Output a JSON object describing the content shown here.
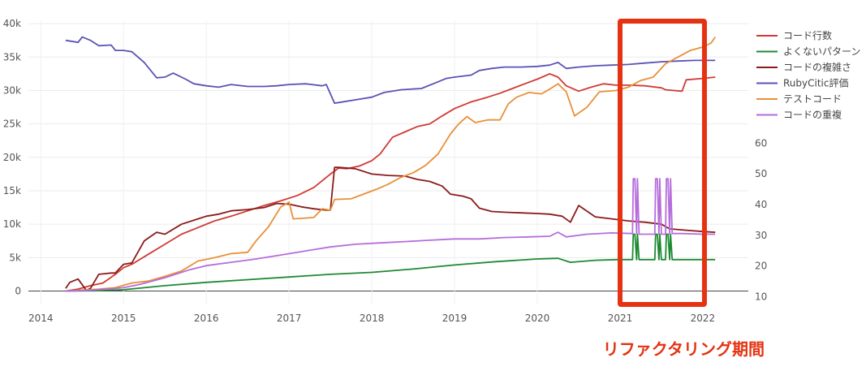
{
  "chart_data": {
    "type": "line",
    "title": "",
    "xlabel": "",
    "ylabel": "",
    "xlim": [
      2013.85,
      2022.55
    ],
    "ylim": [
      -2000,
      40500
    ],
    "y2lim": [
      7.5,
      100
    ],
    "x_ticks": [
      2014,
      2015,
      2016,
      2017,
      2018,
      2019,
      2020,
      2021,
      2022
    ],
    "y_ticks": [
      0,
      5000,
      10000,
      15000,
      20000,
      25000,
      30000,
      35000,
      40000
    ],
    "y_tick_labels": [
      "0",
      "5k",
      "10k",
      "15k",
      "20k",
      "25k",
      "30k",
      "35k",
      "40k"
    ],
    "y2_ticks": [
      10,
      20,
      30,
      40,
      50,
      60
    ],
    "grid": true,
    "legend_position": "right",
    "series": [
      {
        "name": "コード行数",
        "color": "#d03a35",
        "axis": "y",
        "x": [
          2014.3,
          2014.45,
          2014.6,
          2014.75,
          2014.9,
          2015.0,
          2015.1,
          2015.3,
          2015.5,
          2015.7,
          2015.9,
          2016.1,
          2016.3,
          2016.5,
          2016.7,
          2016.9,
          2017.1,
          2017.3,
          2017.5,
          2017.6,
          2017.7,
          2017.85,
          2018.0,
          2018.1,
          2018.25,
          2018.4,
          2018.55,
          2018.7,
          2018.85,
          2019.0,
          2019.2,
          2019.4,
          2019.55,
          2019.7,
          2019.85,
          2020.0,
          2020.15,
          2020.25,
          2020.35,
          2020.5,
          2020.65,
          2020.8,
          2020.95,
          2021.1,
          2021.3,
          2021.5,
          2021.55,
          2021.75,
          2021.8,
          2022.0,
          2022.15
        ],
        "values": [
          0,
          300,
          800,
          1200,
          2500,
          3500,
          4000,
          5500,
          7000,
          8500,
          9500,
          10500,
          11200,
          12000,
          12800,
          13500,
          14300,
          15500,
          17500,
          18400,
          18300,
          18700,
          19500,
          20500,
          23000,
          23800,
          24600,
          25000,
          26200,
          27300,
          28300,
          29000,
          29600,
          30300,
          31000,
          31700,
          32500,
          32000,
          30700,
          29900,
          30500,
          31000,
          30800,
          30800,
          30700,
          30400,
          30100,
          29900,
          31600,
          31800,
          32000
        ]
      },
      {
        "name": "よくないパターン",
        "color": "#1e8a32",
        "axis": "y",
        "x": [
          2014.3,
          2014.7,
          2015.0,
          2015.5,
          2016.0,
          2016.5,
          2017.0,
          2017.5,
          2018.0,
          2018.5,
          2019.0,
          2019.5,
          2020.0,
          2020.25,
          2020.4,
          2020.7,
          2020.95,
          2021.15,
          2021.16,
          2021.18,
          2021.2,
          2021.21,
          2021.23,
          2021.42,
          2021.43,
          2021.45,
          2021.47,
          2021.48,
          2021.5,
          2021.55,
          2021.56,
          2021.58,
          2021.6,
          2021.61,
          2021.63,
          2021.75,
          2022.0,
          2022.15
        ],
        "values": [
          0,
          50,
          200,
          800,
          1300,
          1700,
          2100,
          2500,
          2800,
          3300,
          3900,
          4400,
          4800,
          4900,
          4300,
          4600,
          4700,
          4700,
          8500,
          8500,
          4700,
          8500,
          4700,
          4700,
          8500,
          8500,
          4700,
          8500,
          4700,
          4700,
          8500,
          8500,
          4700,
          8500,
          4700,
          4700,
          4700,
          4700
        ]
      },
      {
        "name": "コードの複雑さ",
        "color": "#8b1a1a",
        "axis": "y",
        "x": [
          2014.3,
          2014.35,
          2014.45,
          2014.55,
          2014.6,
          2014.7,
          2014.85,
          2014.9,
          2015.0,
          2015.1,
          2015.25,
          2015.4,
          2015.5,
          2015.7,
          2015.9,
          2016.0,
          2016.15,
          2016.3,
          2016.5,
          2016.7,
          2016.85,
          2017.0,
          2017.15,
          2017.3,
          2017.45,
          2017.5,
          2017.55,
          2017.6,
          2017.8,
          2018.0,
          2018.2,
          2018.4,
          2018.55,
          2018.7,
          2018.85,
          2018.95,
          2019.1,
          2019.2,
          2019.3,
          2019.45,
          2019.6,
          2019.8,
          2020.0,
          2020.15,
          2020.3,
          2020.4,
          2020.5,
          2020.7,
          2020.9,
          2021.1,
          2021.3,
          2021.5,
          2021.6,
          2021.8,
          2022.0,
          2022.15
        ],
        "values": [
          400,
          1300,
          1800,
          100,
          400,
          2500,
          2700,
          2700,
          4000,
          4200,
          7500,
          8800,
          8500,
          10000,
          10800,
          11200,
          11500,
          12000,
          12200,
          12500,
          13100,
          13000,
          12600,
          12300,
          12100,
          12100,
          18500,
          18500,
          18300,
          17500,
          17300,
          17200,
          16700,
          16400,
          15700,
          14500,
          14200,
          13800,
          12400,
          11900,
          11800,
          11700,
          11600,
          11500,
          11200,
          10300,
          12800,
          11100,
          10800,
          10500,
          10300,
          10000,
          9300,
          9100,
          8900,
          8800
        ]
      },
      {
        "name": "RubyCitic評価",
        "color": "#5a52b5",
        "axis": "y",
        "x": [
          2014.3,
          2014.45,
          2014.5,
          2014.6,
          2014.7,
          2014.85,
          2014.9,
          2015.0,
          2015.1,
          2015.25,
          2015.4,
          2015.5,
          2015.6,
          2015.75,
          2015.85,
          2016.0,
          2016.15,
          2016.3,
          2016.5,
          2016.7,
          2016.85,
          2017.0,
          2017.2,
          2017.4,
          2017.45,
          2017.55,
          2017.6,
          2017.8,
          2018.0,
          2018.15,
          2018.35,
          2018.6,
          2018.8,
          2018.9,
          2019.0,
          2019.2,
          2019.3,
          2019.45,
          2019.6,
          2019.8,
          2020.0,
          2020.15,
          2020.25,
          2020.35,
          2020.5,
          2020.7,
          2020.9,
          2021.1,
          2021.3,
          2021.5,
          2021.7,
          2021.9,
          2022.15
        ],
        "values": [
          37500,
          37200,
          38000,
          37500,
          36700,
          36800,
          36000,
          36000,
          35800,
          34200,
          31900,
          32000,
          32600,
          31700,
          31000,
          30700,
          30500,
          30900,
          30600,
          30600,
          30700,
          30900,
          31000,
          30700,
          30900,
          28100,
          28200,
          28600,
          29000,
          29700,
          30100,
          30300,
          31300,
          31800,
          32000,
          32300,
          33000,
          33300,
          33500,
          33500,
          33600,
          33800,
          34200,
          33300,
          33500,
          33700,
          33800,
          33900,
          34100,
          34300,
          34400,
          34500,
          34500
        ]
      },
      {
        "name": "テストコード",
        "color": "#e8903a",
        "axis": "y",
        "x": [
          2014.3,
          2014.7,
          2014.9,
          2015.1,
          2015.3,
          2015.5,
          2015.7,
          2015.9,
          2016.1,
          2016.3,
          2016.5,
          2016.6,
          2016.75,
          2016.9,
          2017.0,
          2017.05,
          2017.3,
          2017.4,
          2017.5,
          2017.55,
          2017.75,
          2017.9,
          2018.05,
          2018.2,
          2018.35,
          2018.5,
          2018.65,
          2018.8,
          2018.95,
          2019.05,
          2019.15,
          2019.25,
          2019.4,
          2019.55,
          2019.65,
          2019.75,
          2019.9,
          2020.05,
          2020.15,
          2020.25,
          2020.35,
          2020.45,
          2020.6,
          2020.75,
          2020.95,
          2021.1,
          2021.25,
          2021.4,
          2021.55,
          2021.7,
          2021.85,
          2022.0,
          2022.1,
          2022.15
        ],
        "values": [
          0,
          300,
          500,
          1200,
          1500,
          2200,
          3000,
          4500,
          5000,
          5600,
          5800,
          7500,
          9600,
          12600,
          13300,
          10800,
          11000,
          12300,
          12100,
          13700,
          13800,
          14500,
          15200,
          16000,
          17000,
          17700,
          18800,
          20500,
          23500,
          25000,
          26100,
          25200,
          25600,
          25600,
          28000,
          29000,
          29700,
          29500,
          30200,
          31000,
          29800,
          26200,
          27500,
          29800,
          30000,
          30500,
          31500,
          32000,
          34000,
          35000,
          36000,
          36500,
          37100,
          38000
        ]
      },
      {
        "name": "コードの重複",
        "color": "#b66ddb",
        "axis": "y",
        "x": [
          2014.3,
          2014.55,
          2014.8,
          2015.0,
          2015.2,
          2015.5,
          2015.8,
          2016.0,
          2016.3,
          2016.6,
          2016.9,
          2017.2,
          2017.5,
          2017.8,
          2018.1,
          2018.4,
          2018.7,
          2019.0,
          2019.3,
          2019.6,
          2019.9,
          2020.15,
          2020.25,
          2020.35,
          2020.6,
          2020.9,
          2021.15,
          2021.16,
          2021.18,
          2021.2,
          2021.21,
          2021.23,
          2021.42,
          2021.43,
          2021.45,
          2021.47,
          2021.48,
          2021.5,
          2021.55,
          2021.56,
          2021.58,
          2021.6,
          2021.61,
          2021.63,
          2021.75,
          2022.0,
          2022.15
        ],
        "values": [
          0,
          100,
          300,
          500,
          1000,
          2000,
          3200,
          3800,
          4300,
          4800,
          5400,
          6000,
          6600,
          7000,
          7200,
          7400,
          7600,
          7800,
          7800,
          8000,
          8100,
          8200,
          8800,
          8100,
          8500,
          8700,
          8600,
          16800,
          16800,
          8600,
          16800,
          8500,
          8500,
          16800,
          16800,
          8500,
          16800,
          8500,
          8500,
          16800,
          16800,
          8500,
          16800,
          8600,
          8600,
          8500,
          8500
        ]
      }
    ],
    "highlight": {
      "x_start": 2021.0,
      "x_end": 2022.02,
      "label": "リファクタリング期間",
      "color": "#e53212"
    }
  }
}
